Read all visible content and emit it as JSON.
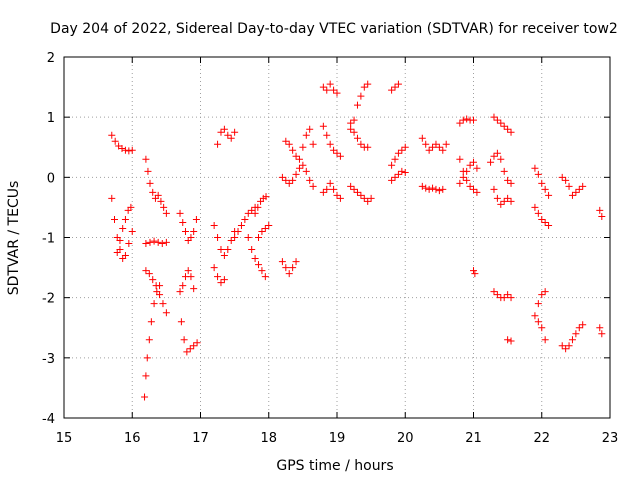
{
  "chart_data": {
    "type": "scatter",
    "title": "Day 204 of 2022, Sidereal Day-to-day VTEC variation (SDTVAR) for receiver tow2",
    "xlabel": "GPS time / hours",
    "ylabel": "SDTVAR / TECUs",
    "xlim": [
      15,
      23
    ],
    "ylim": [
      -4,
      2
    ],
    "grid": true,
    "marker": "+",
    "marker_color": "#ff0000",
    "x_ticks": [
      "15",
      "16",
      "17",
      "18",
      "19",
      "20",
      "21",
      "22",
      "23"
    ],
    "y_ticks": [
      "-4",
      "-3",
      "-2",
      "-1",
      "0",
      "1",
      "2"
    ],
    "segments": [
      {
        "x": [
          15.7,
          15.75,
          15.8,
          15.85,
          15.9,
          15.95,
          16.0
        ],
        "y": [
          0.7,
          0.6,
          0.52,
          0.48,
          0.45,
          0.44,
          0.45
        ]
      },
      {
        "x": [
          15.7,
          15.74,
          15.78,
          15.82,
          15.86,
          15.9,
          15.95,
          16.0
        ],
        "y": [
          -0.35,
          -0.7,
          -1.0,
          -1.2,
          -1.35,
          -1.3,
          -1.1,
          -0.9
        ]
      },
      {
        "x": [
          15.78,
          15.82,
          15.86,
          15.9,
          15.94,
          15.98
        ],
        "y": [
          -1.25,
          -1.05,
          -0.85,
          -0.7,
          -0.55,
          -0.5
        ]
      },
      {
        "x": [
          16.2,
          16.23,
          16.26,
          16.3,
          16.34,
          16.38,
          16.42,
          16.46,
          16.5
        ],
        "y": [
          0.3,
          0.1,
          -0.1,
          -0.25,
          -0.35,
          -0.3,
          -0.4,
          -0.5,
          -0.6
        ]
      },
      {
        "x": [
          16.2,
          16.26,
          16.32,
          16.38,
          16.44,
          16.5
        ],
        "y": [
          -1.1,
          -1.08,
          -1.06,
          -1.08,
          -1.1,
          -1.08
        ]
      },
      {
        "x": [
          16.18,
          16.2,
          16.22,
          16.25,
          16.28,
          16.32,
          16.36,
          16.4
        ],
        "y": [
          -3.65,
          -3.3,
          -3.0,
          -2.7,
          -2.4,
          -2.1,
          -1.9,
          -1.8
        ]
      },
      {
        "x": [
          16.2,
          16.25,
          16.3,
          16.35,
          16.4,
          16.45,
          16.5
        ],
        "y": [
          -1.55,
          -1.6,
          -1.7,
          -1.8,
          -1.95,
          -2.1,
          -2.25
        ]
      },
      {
        "x": [
          16.7,
          16.74,
          16.78,
          16.82,
          16.86,
          16.9,
          16.94
        ],
        "y": [
          -0.6,
          -0.75,
          -0.9,
          -1.05,
          -1.0,
          -0.9,
          -0.7
        ]
      },
      {
        "x": [
          16.7,
          16.74,
          16.78,
          16.82,
          16.86,
          16.9
        ],
        "y": [
          -1.9,
          -1.8,
          -1.65,
          -1.55,
          -1.65,
          -1.85
        ]
      },
      {
        "x": [
          16.72,
          16.76,
          16.8,
          16.85,
          16.9,
          16.95
        ],
        "y": [
          -2.4,
          -2.7,
          -2.9,
          -2.85,
          -2.8,
          -2.75
        ]
      },
      {
        "x": [
          17.25,
          17.3,
          17.35,
          17.4,
          17.45,
          17.5
        ],
        "y": [
          0.55,
          0.75,
          0.8,
          0.7,
          0.65,
          0.75
        ]
      },
      {
        "x": [
          17.2,
          17.25,
          17.3,
          17.35,
          17.4,
          17.45,
          17.5
        ],
        "y": [
          -0.8,
          -1.0,
          -1.2,
          -1.3,
          -1.2,
          -1.05,
          -0.9
        ]
      },
      {
        "x": [
          17.2,
          17.25,
          17.3,
          17.35
        ],
        "y": [
          -1.5,
          -1.65,
          -1.75,
          -1.7
        ]
      },
      {
        "x": [
          17.5,
          17.55,
          17.6,
          17.65,
          17.7,
          17.75,
          17.8
        ],
        "y": [
          -1.0,
          -0.9,
          -0.8,
          -0.7,
          -0.6,
          -0.55,
          -0.5
        ]
      },
      {
        "x": [
          17.7,
          17.75,
          17.8,
          17.85,
          17.9,
          17.95
        ],
        "y": [
          -1.0,
          -1.2,
          -1.35,
          -1.45,
          -1.55,
          -1.65
        ]
      },
      {
        "x": [
          17.8,
          17.84,
          17.88,
          17.92,
          17.96
        ],
        "y": [
          -0.6,
          -0.5,
          -0.4,
          -0.35,
          -0.32
        ]
      },
      {
        "x": [
          17.85,
          17.9,
          17.95,
          18.0
        ],
        "y": [
          -1.0,
          -0.9,
          -0.85,
          -0.8
        ]
      },
      {
        "x": [
          18.2,
          18.25,
          18.3,
          18.35,
          18.4
        ],
        "y": [
          -1.4,
          -1.5,
          -1.6,
          -1.5,
          -1.4
        ]
      },
      {
        "x": [
          18.25,
          18.3,
          18.35,
          18.4,
          18.45,
          18.5,
          18.55,
          18.6,
          18.65
        ],
        "y": [
          0.6,
          0.55,
          0.45,
          0.35,
          0.3,
          0.5,
          0.7,
          0.8,
          0.55
        ]
      },
      {
        "x": [
          18.2,
          18.25,
          18.3,
          18.35,
          18.4,
          18.45,
          18.5,
          18.55,
          18.6,
          18.65
        ],
        "y": [
          0.0,
          -0.05,
          -0.1,
          -0.05,
          0.05,
          0.15,
          0.2,
          0.1,
          -0.05,
          -0.15
        ]
      },
      {
        "x": [
          18.8,
          18.85,
          18.9,
          18.95,
          19.0,
          19.05
        ],
        "y": [
          0.85,
          0.7,
          0.55,
          0.45,
          0.4,
          0.35
        ]
      },
      {
        "x": [
          18.8,
          18.85,
          18.9,
          18.95,
          19.0
        ],
        "y": [
          1.5,
          1.45,
          1.55,
          1.45,
          1.4
        ]
      },
      {
        "x": [
          18.8,
          18.85,
          18.9,
          18.95,
          19.0,
          19.05
        ],
        "y": [
          -0.25,
          -0.2,
          -0.1,
          -0.2,
          -0.3,
          -0.35
        ]
      },
      {
        "x": [
          19.2,
          19.25,
          19.3,
          19.35,
          19.4,
          19.45
        ],
        "y": [
          0.8,
          0.95,
          1.2,
          1.35,
          1.5,
          1.55
        ]
      },
      {
        "x": [
          19.2,
          19.25,
          19.3,
          19.35,
          19.4,
          19.45
        ],
        "y": [
          0.9,
          0.75,
          0.65,
          0.55,
          0.5,
          0.5
        ]
      },
      {
        "x": [
          19.2,
          19.25,
          19.3,
          19.35,
          19.4,
          19.45,
          19.5
        ],
        "y": [
          -0.15,
          -0.2,
          -0.25,
          -0.3,
          -0.35,
          -0.4,
          -0.35
        ]
      },
      {
        "x": [
          19.8,
          19.85,
          19.9
        ],
        "y": [
          1.45,
          1.5,
          1.55
        ]
      },
      {
        "x": [
          19.8,
          19.85,
          19.9,
          19.95,
          20.0
        ],
        "y": [
          0.2,
          0.3,
          0.4,
          0.45,
          0.5
        ]
      },
      {
        "x": [
          19.8,
          19.85,
          19.9,
          19.95,
          20.0
        ],
        "y": [
          -0.05,
          0.0,
          0.05,
          0.1,
          0.08
        ]
      },
      {
        "x": [
          20.25,
          20.3,
          20.35,
          20.4,
          20.45,
          20.5,
          20.55,
          20.6
        ],
        "y": [
          0.65,
          0.55,
          0.45,
          0.5,
          0.55,
          0.5,
          0.45,
          0.55
        ]
      },
      {
        "x": [
          20.25,
          20.3,
          20.35,
          20.4,
          20.45,
          20.5,
          20.55
        ],
        "y": [
          -0.15,
          -0.18,
          -0.2,
          -0.18,
          -0.2,
          -0.22,
          -0.2
        ]
      },
      {
        "x": [
          20.8,
          20.85,
          20.9,
          20.95,
          21.0
        ],
        "y": [
          0.9,
          0.95,
          0.97,
          0.95,
          0.95
        ]
      },
      {
        "x": [
          20.8,
          20.85,
          20.9,
          20.95,
          21.0,
          21.05
        ],
        "y": [
          0.3,
          0.1,
          -0.05,
          -0.15,
          -0.2,
          -0.25
        ]
      },
      {
        "x": [
          20.8,
          20.85,
          20.9,
          20.95,
          21.0,
          21.05
        ],
        "y": [
          -0.1,
          0.0,
          0.1,
          0.2,
          0.25,
          0.15
        ]
      },
      {
        "x": [
          21.0,
          21.02
        ],
        "y": [
          -1.55,
          -1.6
        ]
      },
      {
        "x": [
          21.3,
          21.35,
          21.4,
          21.45,
          21.5,
          21.55
        ],
        "y": [
          1.0,
          0.95,
          0.9,
          0.85,
          0.8,
          0.75
        ]
      },
      {
        "x": [
          21.25,
          21.3,
          21.35,
          21.4,
          21.45,
          21.5,
          21.55
        ],
        "y": [
          0.25,
          0.35,
          0.4,
          0.3,
          0.1,
          -0.05,
          -0.1
        ]
      },
      {
        "x": [
          21.3,
          21.35,
          21.4,
          21.45,
          21.5,
          21.55
        ],
        "y": [
          -0.2,
          -0.35,
          -0.45,
          -0.4,
          -0.35,
          -0.4
        ]
      },
      {
        "x": [
          21.3,
          21.35,
          21.4,
          21.45,
          21.5,
          21.55
        ],
        "y": [
          -1.9,
          -1.95,
          -2.0,
          -2.0,
          -1.95,
          -2.0
        ]
      },
      {
        "x": [
          21.5,
          21.55
        ],
        "y": [
          -2.7,
          -2.72
        ]
      },
      {
        "x": [
          21.9,
          21.95,
          22.0,
          22.05,
          22.1
        ],
        "y": [
          0.15,
          0.05,
          -0.1,
          -0.2,
          -0.3
        ]
      },
      {
        "x": [
          21.9,
          21.95,
          22.0,
          22.05,
          22.1
        ],
        "y": [
          -0.5,
          -0.6,
          -0.7,
          -0.75,
          -0.8
        ]
      },
      {
        "x": [
          21.9,
          21.95,
          22.0,
          22.05
        ],
        "y": [
          -2.3,
          -2.4,
          -2.5,
          -2.7
        ]
      },
      {
        "x": [
          21.95,
          22.0,
          22.05
        ],
        "y": [
          -2.1,
          -1.95,
          -1.9
        ]
      },
      {
        "x": [
          22.3,
          22.35,
          22.4,
          22.45,
          22.5,
          22.55,
          22.6
        ],
        "y": [
          0.0,
          -0.05,
          -0.15,
          -0.3,
          -0.25,
          -0.2,
          -0.15
        ]
      },
      {
        "x": [
          22.3,
          22.35,
          22.4,
          22.45,
          22.5,
          22.55,
          22.6
        ],
        "y": [
          -2.8,
          -2.85,
          -2.8,
          -2.7,
          -2.6,
          -2.5,
          -2.45
        ]
      },
      {
        "x": [
          22.85,
          22.88
        ],
        "y": [
          -0.55,
          -0.65
        ]
      },
      {
        "x": [
          22.85,
          22.88
        ],
        "y": [
          -2.5,
          -2.6
        ]
      }
    ]
  }
}
